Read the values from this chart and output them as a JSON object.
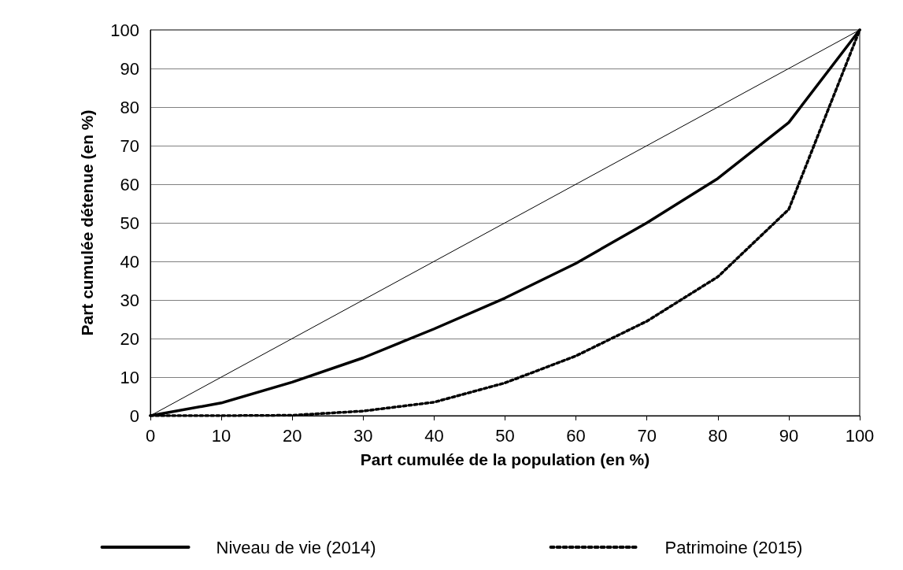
{
  "chart_data": {
    "type": "line",
    "xlabel": "Part cumulée de la population (en %)",
    "ylabel": "Part cumulée détenue (en %)",
    "xlim": [
      0,
      100
    ],
    "xticks": [
      0,
      10,
      20,
      30,
      40,
      50,
      60,
      70,
      80,
      90,
      100
    ],
    "ylim": [
      0,
      100
    ],
    "yticks": [
      0,
      10,
      20,
      30,
      40,
      50,
      60,
      70,
      80,
      90,
      100
    ],
    "grid": "y",
    "legend": "bottom",
    "marker": "none",
    "series": [
      {
        "name": "Niveau de vie (2014)",
        "color": "#000000",
        "line_style": "solid",
        "x": [
          0,
          10,
          20,
          30,
          40,
          50,
          60,
          70,
          80,
          90,
          100
        ],
        "values": [
          0,
          3.3,
          8.7,
          15,
          22.5,
          30.5,
          39.5,
          50,
          61.5,
          76,
          100
        ]
      },
      {
        "name": "Patrimoine (2015)",
        "color": "#000000",
        "line_style": "dotted",
        "x": [
          0,
          10,
          20,
          30,
          40,
          50,
          60,
          70,
          80,
          90,
          100
        ],
        "values": [
          0,
          0,
          0.1,
          1.2,
          3.5,
          8.5,
          15.5,
          24.5,
          36,
          53.5,
          100
        ]
      },
      {
        "color": "#000000",
        "line_style": "solid",
        "x": [
          0,
          100
        ],
        "values": [
          0,
          100
        ]
      }
    ]
  }
}
